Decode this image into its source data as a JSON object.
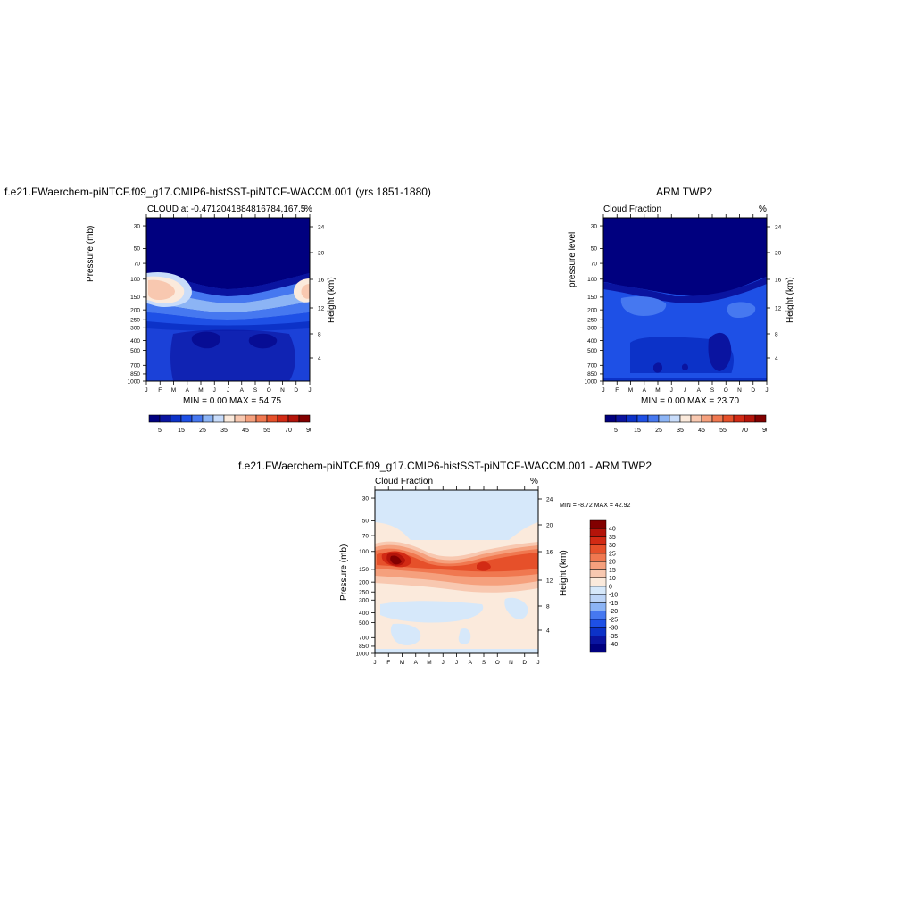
{
  "months": [
    "J",
    "F",
    "M",
    "A",
    "M",
    "J",
    "J",
    "A",
    "S",
    "O",
    "N",
    "D",
    "J"
  ],
  "pressure_ticks": [
    "30",
    "50",
    "70",
    "100",
    "150",
    "200",
    "250",
    "300",
    "400",
    "500",
    "700",
    "850",
    "1000"
  ],
  "height_ticks": [
    "24",
    "20",
    "16",
    "12",
    "8",
    "4"
  ],
  "panels": {
    "model": {
      "main_title": "f.e21.FWaerchem-piNTCF.f09_g17.CMIP6-histSST-piNTCF-WACCM.001 (yrs 1851-1880)",
      "left_title": "CLOUD at -0.4712041884816784,167.5",
      "right_title": "%",
      "ylabel": "Pressure (mb)",
      "ylabel_right": "Height (km)",
      "minmax": "MIN =   0.00 MAX =  54.75"
    },
    "obs": {
      "main_title": "ARM TWP2",
      "left_title": "Cloud Fraction",
      "right_title": "%",
      "ylabel": "pressure level",
      "ylabel_right": "Height (km)",
      "minmax": "MIN =   0.00 MAX =  23.70"
    },
    "diff": {
      "main_title": "f.e21.FWaerchem-piNTCF.f09_g17.CMIP6-histSST-piNTCF-WACCM.001 - ARM TWP2",
      "left_title": "Cloud Fraction",
      "right_title": "%",
      "ylabel": "Pressure (mb)",
      "ylabel_right": "Height (km)",
      "minmax": "MIN =  -8.72 MAX =  42.92"
    }
  },
  "colorbar_top": {
    "labels": [
      "5",
      "15",
      "25",
      "35",
      "45",
      "55",
      "70",
      "90"
    ],
    "colors": [
      "#00007f",
      "#0a14a0",
      "#0c32c8",
      "#1e50e6",
      "#4678f0",
      "#8cb4f5",
      "#c8dcfa",
      "#fbeadc",
      "#f8c8b0",
      "#f5a07d",
      "#f07850",
      "#e6502a",
      "#d22a14",
      "#b4140a",
      "#820000"
    ]
  },
  "colorbar_diff": {
    "labels": [
      "40",
      "35",
      "30",
      "25",
      "20",
      "15",
      "10",
      "0",
      "-10",
      "-15",
      "-20",
      "-25",
      "-30",
      "-35",
      "-40"
    ],
    "colors": [
      "#820000",
      "#b4140a",
      "#d22a14",
      "#e6502a",
      "#f07850",
      "#f5a07d",
      "#f8c8b0",
      "#fbeadc",
      "#d6e8fa",
      "#bcd4f7",
      "#8cb4f5",
      "#4678f0",
      "#1e50e6",
      "#0c32c8",
      "#0a14a0",
      "#00007f"
    ]
  },
  "chart_data": [
    {
      "type": "heatmap",
      "title": "CLOUD at -0.4712041884816784,167.5",
      "xlabel": "",
      "ylabel": "Pressure (mb)",
      "x": [
        "J",
        "F",
        "M",
        "A",
        "M",
        "J",
        "J",
        "A",
        "S",
        "O",
        "N",
        "D",
        "J"
      ],
      "y_pressure_mb": [
        30,
        50,
        70,
        100,
        150,
        200,
        250,
        300,
        400,
        500,
        700,
        850,
        1000
      ],
      "min": 0.0,
      "max": 54.75,
      "units": "%"
    },
    {
      "type": "heatmap",
      "title": "ARM TWP2",
      "xlabel": "",
      "ylabel": "pressure level",
      "x": [
        "J",
        "F",
        "M",
        "A",
        "M",
        "J",
        "J",
        "A",
        "S",
        "O",
        "N",
        "D",
        "J"
      ],
      "y_pressure_mb": [
        30,
        50,
        70,
        100,
        150,
        200,
        250,
        300,
        400,
        500,
        700,
        850,
        1000
      ],
      "min": 0.0,
      "max": 23.7,
      "units": "%"
    },
    {
      "type": "heatmap",
      "title": "f.e21.FWaerchem-piNTCF.f09_g17.CMIP6-histSST-piNTCF-WACCM.001 - ARM TWP2",
      "xlabel": "",
      "ylabel": "Pressure (mb)",
      "x": [
        "J",
        "F",
        "M",
        "A",
        "M",
        "J",
        "J",
        "A",
        "S",
        "O",
        "N",
        "D",
        "J"
      ],
      "y_pressure_mb": [
        30,
        50,
        70,
        100,
        150,
        200,
        250,
        300,
        400,
        500,
        700,
        850,
        1000
      ],
      "min": -8.72,
      "max": 42.92,
      "units": "%"
    }
  ]
}
